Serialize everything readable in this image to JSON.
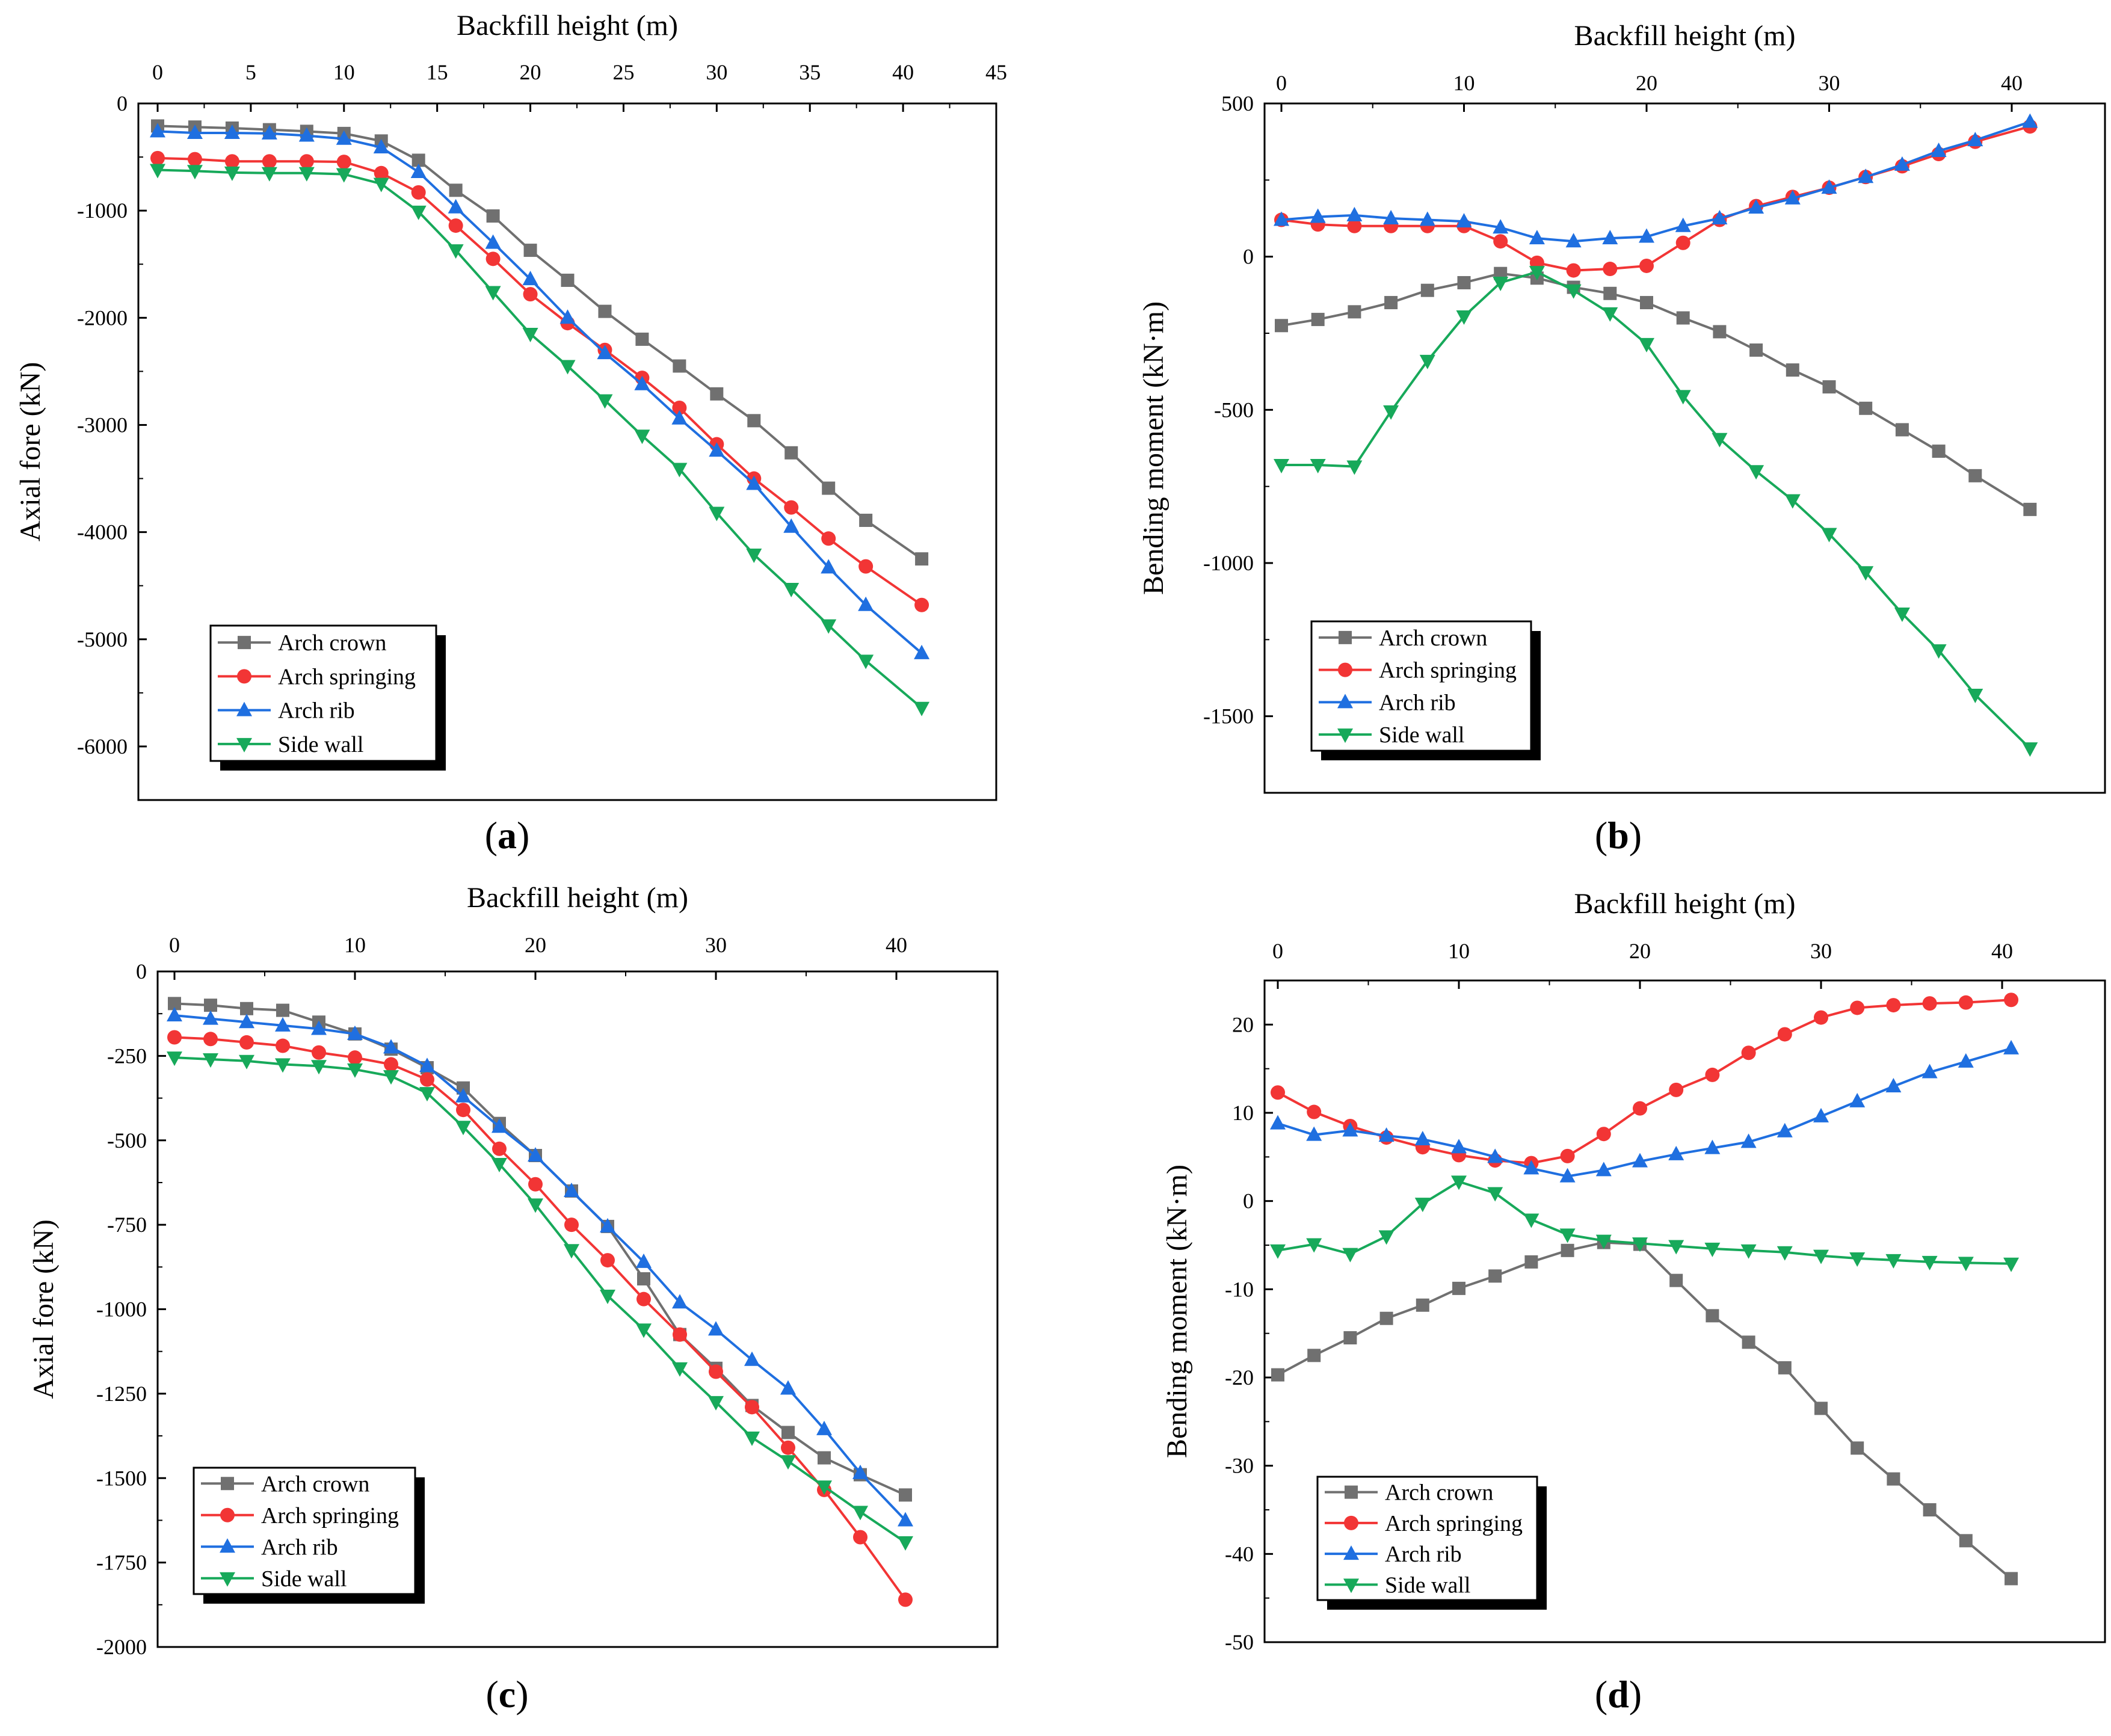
{
  "figure": {
    "panels": [
      "(a)",
      "(b)",
      "(c)",
      "(d)"
    ],
    "panel_letters": [
      "a",
      "b",
      "c",
      "d"
    ]
  },
  "colors": {
    "arch_crown": "#707070",
    "arch_springing": "#f23535",
    "arch_rib": "#1f6fe0",
    "side_wall": "#17a95a"
  },
  "chart_data": [
    {
      "id": "a",
      "label": "(a)",
      "type": "line",
      "xlabel": "Backfill height (m)",
      "ylabel": "Axial fore (kN)",
      "xlim": [
        -1,
        45
      ],
      "ylim": [
        -6500,
        0
      ],
      "xticks": [
        0,
        5,
        10,
        15,
        20,
        25,
        30,
        35,
        40,
        45
      ],
      "yticks": [
        0,
        -1000,
        -2000,
        -3000,
        -4000,
        -5000,
        -6000
      ],
      "x": [
        0,
        2,
        4,
        6,
        8,
        10,
        12,
        14,
        16,
        18,
        20,
        22,
        24,
        26,
        28,
        30,
        32,
        34,
        36,
        38,
        41
      ],
      "series": [
        {
          "name": "Arch crown",
          "marker": "square",
          "values": [
            -210,
            -220,
            -230,
            -245,
            -260,
            -280,
            -350,
            -530,
            -810,
            -1050,
            -1370,
            -1650,
            -1940,
            -2200,
            -2450,
            -2710,
            -2960,
            -3260,
            -3590,
            -3890,
            -4250
          ]
        },
        {
          "name": "Arch springing",
          "marker": "circle",
          "values": [
            -510,
            -520,
            -540,
            -540,
            -540,
            -545,
            -650,
            -830,
            -1140,
            -1450,
            -1780,
            -2050,
            -2300,
            -2560,
            -2840,
            -3180,
            -3500,
            -3770,
            -4060,
            -4320,
            -4680
          ]
        },
        {
          "name": "Arch rib",
          "marker": "triangle-up",
          "values": [
            -260,
            -275,
            -275,
            -280,
            -300,
            -330,
            -410,
            -640,
            -970,
            -1300,
            -1640,
            -2000,
            -2330,
            -2620,
            -2940,
            -3240,
            -3550,
            -3950,
            -4330,
            -4680,
            -5130
          ]
        },
        {
          "name": "Side wall",
          "marker": "triangle-down",
          "values": [
            -620,
            -630,
            -645,
            -650,
            -650,
            -660,
            -750,
            -1010,
            -1370,
            -1760,
            -2150,
            -2450,
            -2770,
            -3100,
            -3410,
            -3820,
            -4210,
            -4530,
            -4870,
            -5200,
            -5640
          ]
        }
      ]
    },
    {
      "id": "b",
      "label": "(b)",
      "type": "line",
      "xlabel": "Backfill height (m)",
      "ylabel": "Bending moment (kN·m)",
      "xlim": [
        -1,
        45
      ],
      "ylim": [
        -1750,
        500
      ],
      "xticks": [
        0,
        10,
        20,
        30,
        40
      ],
      "yticks": [
        500,
        0,
        -500,
        -1000,
        -1500
      ],
      "x": [
        0,
        2,
        4,
        6,
        8,
        10,
        12,
        14,
        16,
        18,
        20,
        22,
        24,
        26,
        28,
        30,
        32,
        34,
        36,
        38,
        41
      ],
      "series": [
        {
          "name": "Arch crown",
          "marker": "square",
          "values": [
            -225,
            -205,
            -180,
            -150,
            -110,
            -85,
            -55,
            -70,
            -100,
            -120,
            -150,
            -200,
            -245,
            -305,
            -370,
            -425,
            -495,
            -565,
            -635,
            -715,
            -825
          ]
        },
        {
          "name": "Arch springing",
          "marker": "circle",
          "values": [
            120,
            105,
            100,
            100,
            100,
            100,
            50,
            -20,
            -45,
            -40,
            -30,
            45,
            120,
            165,
            195,
            225,
            260,
            295,
            335,
            375,
            425
          ]
        },
        {
          "name": "Arch rib",
          "marker": "triangle-up",
          "values": [
            120,
            130,
            135,
            125,
            120,
            115,
            95,
            60,
            50,
            60,
            65,
            100,
            125,
            160,
            190,
            225,
            260,
            300,
            345,
            380,
            440
          ]
        },
        {
          "name": "Side wall",
          "marker": "triangle-down",
          "values": [
            -680,
            -680,
            -685,
            -505,
            -340,
            -195,
            -85,
            -50,
            -110,
            -185,
            -285,
            -455,
            -595,
            -700,
            -795,
            -905,
            -1030,
            -1165,
            -1285,
            -1430,
            -1605
          ]
        }
      ]
    },
    {
      "id": "c",
      "label": "(c)",
      "type": "line",
      "xlabel": "Backfill height (m)",
      "ylabel": "Axial fore (kN)",
      "xlim": [
        -1,
        45
      ],
      "ylim": [
        -2000,
        0
      ],
      "xticks": [
        0,
        10,
        20,
        30,
        40
      ],
      "yticks": [
        0,
        -250,
        -500,
        -750,
        -1000,
        -1250,
        -1500,
        -1750,
        -2000
      ],
      "x": [
        0,
        2,
        4,
        6,
        8,
        10,
        12,
        14,
        16,
        18,
        20,
        22,
        24,
        26,
        28,
        30,
        32,
        34,
        36,
        38,
        40.5
      ],
      "series": [
        {
          "name": "Arch crown",
          "marker": "square",
          "values": [
            -95,
            -100,
            -110,
            -115,
            -150,
            -185,
            -230,
            -285,
            -345,
            -450,
            -545,
            -650,
            -755,
            -910,
            -1075,
            -1175,
            -1285,
            -1365,
            -1440,
            -1490,
            -1550
          ]
        },
        {
          "name": "Arch springing",
          "marker": "circle",
          "values": [
            -195,
            -200,
            -210,
            -220,
            -240,
            -255,
            -275,
            -320,
            -410,
            -525,
            -630,
            -750,
            -855,
            -970,
            -1075,
            -1185,
            -1290,
            -1410,
            -1535,
            -1675,
            -1860
          ]
        },
        {
          "name": "Arch rib",
          "marker": "triangle-up",
          "values": [
            -130,
            -140,
            -150,
            -160,
            -170,
            -185,
            -225,
            -280,
            -370,
            -460,
            -545,
            -650,
            -755,
            -860,
            -980,
            -1060,
            -1150,
            -1235,
            -1355,
            -1485,
            -1625
          ]
        },
        {
          "name": "Side wall",
          "marker": "triangle-down",
          "values": [
            -255,
            -260,
            -265,
            -275,
            -280,
            -290,
            -310,
            -360,
            -460,
            -570,
            -690,
            -825,
            -960,
            -1060,
            -1175,
            -1275,
            -1380,
            -1450,
            -1525,
            -1600,
            -1690
          ]
        }
      ]
    },
    {
      "id": "d",
      "label": "(d)",
      "type": "line",
      "xlabel": "Backfill height (m)",
      "ylabel": "Bending moment (kN·m)",
      "xlim": [
        -1,
        45
      ],
      "ylim": [
        -50,
        25
      ],
      "xticks": [
        0,
        10,
        20,
        30,
        40
      ],
      "yticks": [
        20,
        10,
        0,
        -10,
        -20,
        -30,
        -40,
        -50
      ],
      "x": [
        0,
        2,
        4,
        6,
        8,
        10,
        12,
        14,
        16,
        18,
        20,
        22,
        24,
        26,
        28,
        30,
        32,
        34,
        36,
        38,
        40.5
      ],
      "series": [
        {
          "name": "Arch crown",
          "marker": "square",
          "values": [
            -19.7,
            -17.5,
            -15.5,
            -13.3,
            -11.8,
            -9.9,
            -8.5,
            -6.9,
            -5.6,
            -4.7,
            -4.9,
            -9.0,
            -13.0,
            -16.0,
            -18.9,
            -23.5,
            -28.0,
            -31.5,
            -35.0,
            -38.5,
            -42.8
          ]
        },
        {
          "name": "Arch springing",
          "marker": "circle",
          "values": [
            12.3,
            10.1,
            8.5,
            7.2,
            6.1,
            5.2,
            4.6,
            4.3,
            5.1,
            7.6,
            10.5,
            12.6,
            14.3,
            16.8,
            18.9,
            20.8,
            21.9,
            22.2,
            22.4,
            22.5,
            22.8
          ]
        },
        {
          "name": "Arch rib",
          "marker": "triangle-up",
          "values": [
            8.8,
            7.5,
            8.0,
            7.4,
            7.0,
            6.1,
            5.0,
            3.7,
            2.8,
            3.5,
            4.5,
            5.3,
            6.0,
            6.7,
            7.9,
            9.6,
            11.3,
            13.0,
            14.6,
            15.8,
            17.3
          ]
        },
        {
          "name": "Side wall",
          "marker": "triangle-down",
          "values": [
            -5.6,
            -4.9,
            -6.0,
            -4.0,
            -0.3,
            2.2,
            0.9,
            -2.1,
            -3.8,
            -4.5,
            -4.8,
            -5.1,
            -5.4,
            -5.6,
            -5.8,
            -6.2,
            -6.5,
            -6.7,
            -6.9,
            -7.0,
            -7.1
          ]
        }
      ]
    }
  ]
}
